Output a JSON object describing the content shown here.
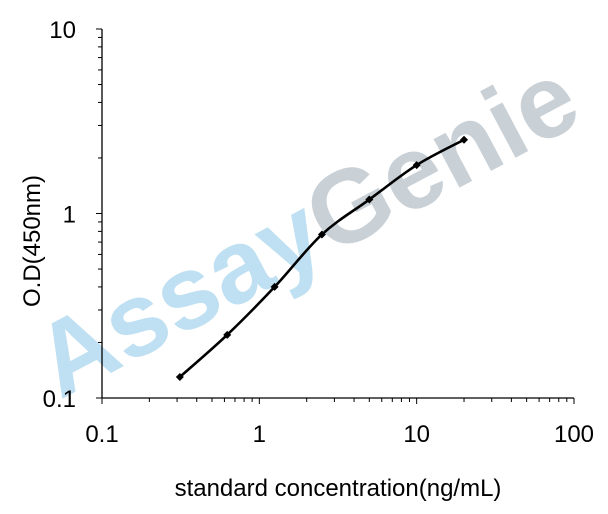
{
  "chart_data": {
    "type": "line",
    "title": "",
    "xlabel": "standard concentration(ng/mL)",
    "ylabel": "O.D(450nm)",
    "xscale": "log",
    "yscale": "log",
    "xlim": [
      0.1,
      100
    ],
    "ylim": [
      0.1,
      10
    ],
    "xticks": [
      0.1,
      1,
      10,
      100
    ],
    "yticks": [
      0.1,
      1,
      10
    ],
    "x_tick_labels": [
      "0.1",
      "1",
      "10",
      "100"
    ],
    "y_tick_labels": [
      "0.1",
      "1",
      "10"
    ],
    "grid": false,
    "legend": "none",
    "series": [
      {
        "x": [
          0.3125,
          0.625,
          1.25,
          2.5,
          5,
          10,
          20
        ],
        "y": [
          0.13,
          0.22,
          0.4,
          0.77,
          1.19,
          1.83,
          2.51
        ],
        "color": "#000000",
        "marker": "diamond",
        "smooth": true
      }
    ]
  },
  "watermark": {
    "text_blue": "Assay",
    "text_gray": "Genie",
    "color_blue": "#bfe0f2",
    "color_gray": "#c9d0d6"
  }
}
